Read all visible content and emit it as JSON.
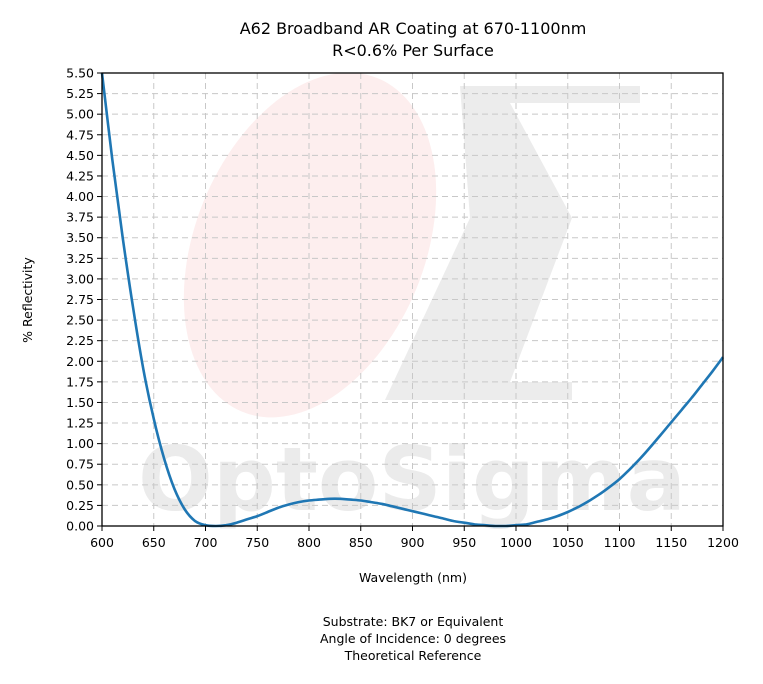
{
  "chart_data": {
    "type": "line",
    "title": "A62 Broadband AR Coating at 670-1100nm",
    "subtitle": "R<0.6% Per Surface",
    "xlabel": "Wavelength (nm)",
    "ylabel": "% Reflectivity",
    "xlim": [
      600,
      1200
    ],
    "ylim": [
      0,
      5.5
    ],
    "x_ticks": [
      "600",
      "650",
      "700",
      "750",
      "800",
      "850",
      "900",
      "950",
      "1000",
      "1050",
      "1100",
      "1150",
      "1200"
    ],
    "y_ticks": [
      "0.00",
      "0.25",
      "0.50",
      "0.75",
      "1.00",
      "1.25",
      "1.50",
      "1.75",
      "2.00",
      "2.25",
      "2.50",
      "2.75",
      "3.00",
      "3.25",
      "3.50",
      "3.75",
      "4.00",
      "4.25",
      "4.50",
      "4.75",
      "5.00",
      "5.25",
      "5.50"
    ],
    "grid": true,
    "series": [
      {
        "color": "#1f77b4",
        "x": [
          600,
          610,
          620,
          630,
          640,
          650,
          660,
          670,
          680,
          690,
          700,
          710,
          720,
          730,
          740,
          750,
          760,
          770,
          780,
          790,
          800,
          810,
          820,
          830,
          840,
          850,
          860,
          870,
          880,
          890,
          900,
          910,
          920,
          930,
          940,
          950,
          960,
          970,
          980,
          990,
          1000,
          1010,
          1020,
          1030,
          1040,
          1050,
          1060,
          1070,
          1080,
          1090,
          1100,
          1110,
          1120,
          1130,
          1140,
          1150,
          1160,
          1170,
          1180,
          1190,
          1200
        ],
        "y": [
          5.55,
          4.45,
          3.5,
          2.65,
          1.9,
          1.3,
          0.82,
          0.45,
          0.2,
          0.06,
          0.01,
          0.0,
          0.01,
          0.04,
          0.08,
          0.12,
          0.17,
          0.22,
          0.26,
          0.29,
          0.31,
          0.32,
          0.33,
          0.33,
          0.32,
          0.31,
          0.29,
          0.27,
          0.24,
          0.21,
          0.18,
          0.15,
          0.12,
          0.09,
          0.06,
          0.04,
          0.02,
          0.01,
          0.0,
          0.0,
          0.01,
          0.02,
          0.05,
          0.08,
          0.12,
          0.17,
          0.23,
          0.3,
          0.38,
          0.47,
          0.57,
          0.69,
          0.82,
          0.96,
          1.11,
          1.26,
          1.41,
          1.56,
          1.72,
          1.88,
          2.05
        ]
      }
    ]
  },
  "watermark": "OptoSigma",
  "footer": {
    "line1": "Substrate: BK7 or Equivalent",
    "line2": "Angle of Incidence: 0 degrees",
    "line3": "Theoretical Reference"
  }
}
